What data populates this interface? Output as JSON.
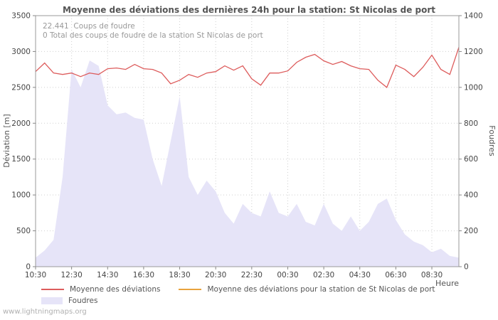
{
  "title": "Moyenne des déviations des dernières 24h pour la station: St Nicolas de port",
  "annotations": {
    "line1": "22.441  Coups de foudre",
    "line2": "0 Total des coups de foudre de la station St Nicolas de port"
  },
  "watermark": "www.lightningmaps.org",
  "chart_data": {
    "type": "line+area",
    "xlabel": "Heure",
    "x": [
      "10:30",
      "11:00",
      "11:30",
      "12:00",
      "12:30",
      "13:00",
      "13:30",
      "14:00",
      "14:30",
      "15:00",
      "15:30",
      "16:00",
      "16:30",
      "17:00",
      "17:30",
      "18:00",
      "18:30",
      "19:00",
      "19:30",
      "20:00",
      "20:30",
      "21:00",
      "21:30",
      "22:00",
      "22:30",
      "23:00",
      "23:30",
      "00:00",
      "00:30",
      "01:00",
      "01:30",
      "02:00",
      "02:30",
      "03:00",
      "03:30",
      "04:00",
      "04:30",
      "05:00",
      "05:30",
      "06:00",
      "06:30",
      "07:00",
      "07:30",
      "08:00",
      "08:30",
      "09:00",
      "09:30",
      "10:00"
    ],
    "x_ticks": [
      "10:30",
      "12:30",
      "14:30",
      "16:30",
      "18:30",
      "20:30",
      "22:30",
      "00:30",
      "02:30",
      "04:30",
      "06:30",
      "08:30"
    ],
    "x_tick_indices": [
      0,
      4,
      8,
      12,
      16,
      20,
      24,
      28,
      32,
      36,
      40,
      44
    ],
    "left_axis": {
      "label": "Déviation [m]",
      "range": [
        0,
        3500
      ],
      "ticks": [
        0,
        500,
        1000,
        1500,
        2000,
        2500,
        3000,
        3500
      ]
    },
    "right_axis": {
      "label": "Foudres",
      "range": [
        0,
        1400
      ],
      "ticks": [
        0,
        200,
        400,
        600,
        800,
        1000,
        1200,
        1400
      ]
    },
    "grid": true,
    "legend_position": "bottom",
    "series": [
      {
        "name": "Moyenne des déviations",
        "type": "line",
        "axis": "left",
        "color": "#dd5c5c",
        "values": [
          2720,
          2840,
          2700,
          2680,
          2700,
          2650,
          2700,
          2680,
          2760,
          2770,
          2750,
          2820,
          2760,
          2750,
          2700,
          2550,
          2600,
          2680,
          2640,
          2700,
          2720,
          2800,
          2740,
          2800,
          2620,
          2530,
          2700,
          2700,
          2730,
          2850,
          2920,
          2960,
          2870,
          2820,
          2860,
          2800,
          2760,
          2750,
          2600,
          2500,
          2810,
          2750,
          2650,
          2780,
          2950,
          2750,
          2680,
          3060
        ]
      },
      {
        "name": "Moyenne des déviations pour la station de St Nicolas de port",
        "type": "line",
        "axis": "left",
        "color": "#e8a33d",
        "values": []
      },
      {
        "name": "Foudres",
        "type": "area",
        "axis": "right",
        "color": "#e6e4f8",
        "values": [
          50,
          90,
          150,
          500,
          1100,
          1000,
          1150,
          1120,
          900,
          850,
          860,
          830,
          820,
          600,
          450,
          700,
          950,
          500,
          400,
          480,
          420,
          300,
          240,
          350,
          300,
          280,
          420,
          300,
          280,
          350,
          250,
          230,
          350,
          240,
          200,
          280,
          200,
          250,
          350,
          380,
          260,
          180,
          140,
          120,
          80,
          100,
          60,
          50
        ]
      }
    ]
  }
}
